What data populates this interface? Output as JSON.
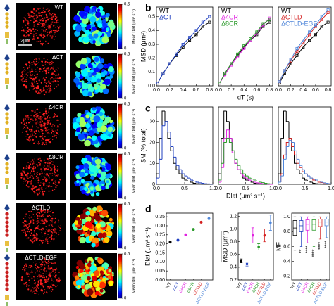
{
  "panel_labels": [
    "a",
    "b",
    "c",
    "d"
  ],
  "panel_a": {
    "rows": [
      "WT",
      "ΔCT",
      "Δ4CR",
      "Δ8CR",
      "ΔCTLD",
      "ΔCTLD-EGF"
    ],
    "scale_bar": "2μm",
    "colorbar": {
      "lim": [
        0,
        0.5
      ],
      "ticks": [
        0,
        0.5
      ],
      "label": "Mean Dlat (μm² s⁻¹)"
    }
  },
  "chart_data": [
    {
      "type": "line",
      "ylabel": "MSD (μm²)",
      "legend": "upper left",
      "x": [
        0.02,
        0.1,
        0.2,
        0.3,
        0.4,
        0.5,
        0.6,
        0.7,
        0.8
      ],
      "xlim": [
        0,
        0.85
      ],
      "xticks": [
        {
          "value": 0,
          "label": "0.0"
        },
        0.2,
        0.4,
        0.6,
        0.8
      ],
      "ylim": [
        0,
        0.57
      ],
      "yticks": [
        {
          "value": 0,
          "label": "0.0"
        },
        0.1,
        0.2,
        0.3,
        0.4,
        0.5
      ],
      "series": [
        {
          "name": "WT",
          "color": "#000000",
          "values": [
            0.02,
            0.09,
            0.16,
            0.22,
            0.28,
            0.33,
            0.37,
            0.43,
            0.46
          ]
        },
        {
          "name": "ΔCT",
          "color": "#1f3fbf",
          "values": [
            0.02,
            0.09,
            0.16,
            0.23,
            0.3,
            0.35,
            0.4,
            0.46,
            0.5
          ]
        }
      ]
    },
    {
      "type": "line",
      "xlabel": "dT (s)",
      "legend": "upper left",
      "x": [
        0.02,
        0.1,
        0.2,
        0.3,
        0.4,
        0.5,
        0.6,
        0.7,
        0.8
      ],
      "xlim": [
        0,
        0.85
      ],
      "xticks": [
        {
          "value": 0,
          "label": "0.0"
        },
        0.2,
        0.4,
        0.6,
        0.8
      ],
      "ylim": [
        0,
        0.57
      ],
      "series": [
        {
          "name": "WT",
          "color": "#000000",
          "values": [
            0.02,
            0.09,
            0.16,
            0.22,
            0.28,
            0.33,
            0.37,
            0.43,
            0.46
          ]
        },
        {
          "name": "Δ4CR",
          "color": "#e020e0",
          "values": [
            0.02,
            0.08,
            0.15,
            0.21,
            0.27,
            0.33,
            0.38,
            0.44,
            0.49
          ]
        },
        {
          "name": "Δ8CR",
          "color": "#2a9a2a",
          "values": [
            0.02,
            0.09,
            0.16,
            0.23,
            0.29,
            0.34,
            0.39,
            0.45,
            0.48
          ]
        }
      ]
    },
    {
      "type": "line",
      "legend": "upper left",
      "x": [
        0.02,
        0.1,
        0.2,
        0.3,
        0.4,
        0.5,
        0.6,
        0.7,
        0.8
      ],
      "xlim": [
        0,
        0.85
      ],
      "xticks": [
        {
          "value": 0,
          "label": "0.0"
        },
        0.2,
        0.4,
        0.6,
        0.8
      ],
      "ylim": [
        0,
        0.57
      ],
      "series": [
        {
          "name": "WT",
          "color": "#000000",
          "values": [
            0.02,
            0.09,
            0.16,
            0.22,
            0.28,
            0.33,
            0.37,
            0.43,
            0.46
          ]
        },
        {
          "name": "ΔCTLD",
          "color": "#d42020",
          "values": [
            0.03,
            0.11,
            0.18,
            0.25,
            0.31,
            0.37,
            0.43,
            0.48,
            0.53
          ]
        },
        {
          "name": "ΔCTLD-EGF",
          "color": "#4f86d9",
          "values": [
            0.03,
            0.11,
            0.19,
            0.27,
            0.33,
            0.39,
            0.44,
            0.5,
            0.55
          ]
        }
      ]
    },
    {
      "type": "histogram",
      "ylabel": "SM (% total)",
      "bins": [
        0,
        0.05,
        0.1,
        0.15,
        0.2,
        0.25,
        0.3,
        0.35,
        0.4,
        0.45,
        0.5,
        0.55,
        0.6,
        0.65,
        0.7,
        0.75,
        0.8,
        0.85,
        0.9,
        0.95,
        1.0
      ],
      "xlim": [
        0,
        1
      ],
      "xticks": [
        {
          "value": 0,
          "label": "0.0"
        },
        0.5,
        {
          "value": 1,
          "label": "1.0"
        }
      ],
      "ylim": [
        0,
        37
      ],
      "yticks": [
        0,
        10,
        20,
        30
      ],
      "series": [
        {
          "color": "#000000",
          "values": [
            5,
            22,
            35,
            30,
            22,
            16,
            10,
            7,
            5,
            3,
            2,
            1.5,
            1,
            0.5,
            0.3,
            0.2,
            0.1,
            0,
            0,
            0
          ]
        },
        {
          "color": "#1f3fbf",
          "values": [
            3,
            12,
            28,
            30,
            25,
            18,
            13,
            9,
            7,
            5,
            4,
            3,
            2,
            1.5,
            1,
            0.7,
            0.5,
            0.3,
            0.2,
            0.1
          ]
        }
      ]
    },
    {
      "type": "histogram",
      "xlabel": "Dlat (μm² s⁻¹)",
      "bins": [
        0,
        0.05,
        0.1,
        0.15,
        0.2,
        0.25,
        0.3,
        0.35,
        0.4,
        0.45,
        0.5,
        0.55,
        0.6,
        0.65,
        0.7,
        0.75,
        0.8,
        0.85,
        0.9,
        0.95,
        1.0
      ],
      "xlim": [
        0,
        1
      ],
      "xticks": [
        {
          "value": 0,
          "label": "0.0"
        },
        0.5,
        {
          "value": 1,
          "label": "1.0"
        }
      ],
      "ylim": [
        0,
        37
      ],
      "series": [
        {
          "color": "#000000",
          "values": [
            5,
            22,
            35,
            30,
            22,
            16,
            10,
            7,
            5,
            3,
            2,
            1.5,
            1,
            0.5,
            0.3,
            0.2,
            0.1,
            0,
            0,
            0
          ]
        },
        {
          "color": "#e020e0",
          "values": [
            1,
            8,
            22,
            26,
            22,
            15,
            10,
            7,
            5,
            4,
            3,
            2,
            1.5,
            1,
            0.7,
            0.5,
            0.3,
            0.2,
            0.1,
            0
          ]
        },
        {
          "color": "#2a9a2a",
          "values": [
            2,
            10,
            20,
            22,
            20,
            16,
            12,
            9,
            7,
            5,
            4,
            3,
            2.5,
            2,
            1.5,
            1,
            0.8,
            0.5,
            0.3,
            0.2
          ]
        }
      ]
    },
    {
      "type": "histogram",
      "bins": [
        0,
        0.05,
        0.1,
        0.15,
        0.2,
        0.25,
        0.3,
        0.35,
        0.4,
        0.45,
        0.5,
        0.55,
        0.6,
        0.65,
        0.7,
        0.75,
        0.8,
        0.85,
        0.9,
        0.95,
        1.0
      ],
      "xlim": [
        0,
        1
      ],
      "xticks": [
        {
          "value": 0,
          "label": "0.0"
        },
        0.5,
        {
          "value": 1,
          "label": "1.0"
        }
      ],
      "ylim": [
        0,
        37
      ],
      "series": [
        {
          "color": "#000000",
          "values": [
            5,
            22,
            35,
            30,
            22,
            16,
            10,
            7,
            5,
            3,
            2,
            1.5,
            1,
            0.5,
            0.3,
            0.2,
            0.1,
            0,
            0,
            0
          ]
        },
        {
          "color": "#d42020",
          "values": [
            1,
            5,
            14,
            20,
            22,
            18,
            14,
            10,
            8,
            6,
            5,
            4,
            3,
            2,
            1.5,
            1,
            0.8,
            0.6,
            0.4,
            0.3
          ]
        },
        {
          "color": "#4f86d9",
          "values": [
            1,
            4,
            12,
            18,
            21,
            20,
            16,
            12,
            9,
            7,
            5,
            4,
            3,
            2.5,
            2,
            1.5,
            1,
            0.7,
            0.5,
            0.3
          ]
        }
      ]
    },
    {
      "type": "dot",
      "ylabel": "Dlat (μm² s⁻¹)",
      "categories": [
        "WT",
        "ΔCT",
        "Δ4CR",
        "Δ8CR",
        "ΔCTLD",
        "ΔCTLD-EGF"
      ],
      "category_colors": [
        "#000000",
        "#1f3fbf",
        "#e020e0",
        "#2a9a2a",
        "#d42020",
        "#4f86d9"
      ],
      "values": [
        0.21,
        0.22,
        0.25,
        0.28,
        0.32,
        0.34
      ],
      "ylim": [
        0,
        0.37
      ],
      "yticks": [
        {
          "value": 0,
          "label": "0.00"
        },
        {
          "value": 0.05,
          "label": "0.05"
        },
        {
          "value": 0.1,
          "label": "0.10"
        },
        {
          "value": 0.15,
          "label": "0.15"
        },
        {
          "value": 0.2,
          "label": "0.20"
        },
        {
          "value": 0.25,
          "label": "0.25"
        },
        {
          "value": 0.3,
          "label": "0.30"
        },
        {
          "value": 0.35,
          "label": "0.35"
        }
      ]
    },
    {
      "type": "errorbar",
      "ylabel": "MSD (μm²)",
      "categories": [
        "WT",
        "ΔCT",
        "Δ4CR",
        "Δ8CR",
        "ΔCTLD",
        "ΔCTLD-EGF"
      ],
      "category_colors": [
        "#000000",
        "#1f3fbf",
        "#e020e0",
        "#2a9a2a",
        "#d42020",
        "#4f86d9"
      ],
      "values": [
        0.5,
        0.45,
        0.9,
        0.72,
        0.9,
        1.1
      ],
      "errors": [
        0.03,
        0.03,
        0.12,
        0.05,
        0.1,
        0.12
      ],
      "ylim": [
        0.2,
        1.25
      ],
      "yticks": [
        0.2,
        0.4,
        0.6,
        0.8,
        {
          "value": 1,
          "label": "1.0"
        },
        1.2
      ]
    },
    {
      "type": "box",
      "ylabel": "MF",
      "categories": [
        "WT",
        "ΔCT",
        "Δ4CR",
        "Δ8CR",
        "ΔCTLD",
        "ΔCTLD-EGF"
      ],
      "category_colors": [
        "#000000",
        "#1f3fbf",
        "#e020e0",
        "#2a9a2a",
        "#d42020",
        "#4f86d9"
      ],
      "boxes": [
        {
          "whislo": 0.55,
          "q1": 0.75,
          "med": 0.85,
          "q3": 0.95,
          "whishi": 1.0
        },
        {
          "whislo": 0.6,
          "q1": 0.8,
          "med": 0.88,
          "q3": 0.95,
          "whishi": 1.0
        },
        {
          "whislo": 0.65,
          "q1": 0.82,
          "med": 0.9,
          "q3": 0.96,
          "whishi": 1.0
        },
        {
          "whislo": 0.6,
          "q1": 0.82,
          "med": 0.9,
          "q3": 0.96,
          "whishi": 1.0
        },
        {
          "whislo": 0.7,
          "q1": 0.87,
          "med": 0.93,
          "q3": 0.97,
          "whishi": 1.0
        },
        {
          "whislo": 0.72,
          "q1": 0.88,
          "med": 0.93,
          "q3": 0.97,
          "whishi": 1.0
        }
      ],
      "significance": [
        null,
        "**",
        "****",
        "****",
        "****",
        "****"
      ],
      "ylim": [
        0.15,
        1.05
      ],
      "yticks": [
        0.2,
        0.4,
        0.6,
        0.8,
        {
          "value": 1,
          "label": "1.0"
        }
      ]
    }
  ]
}
